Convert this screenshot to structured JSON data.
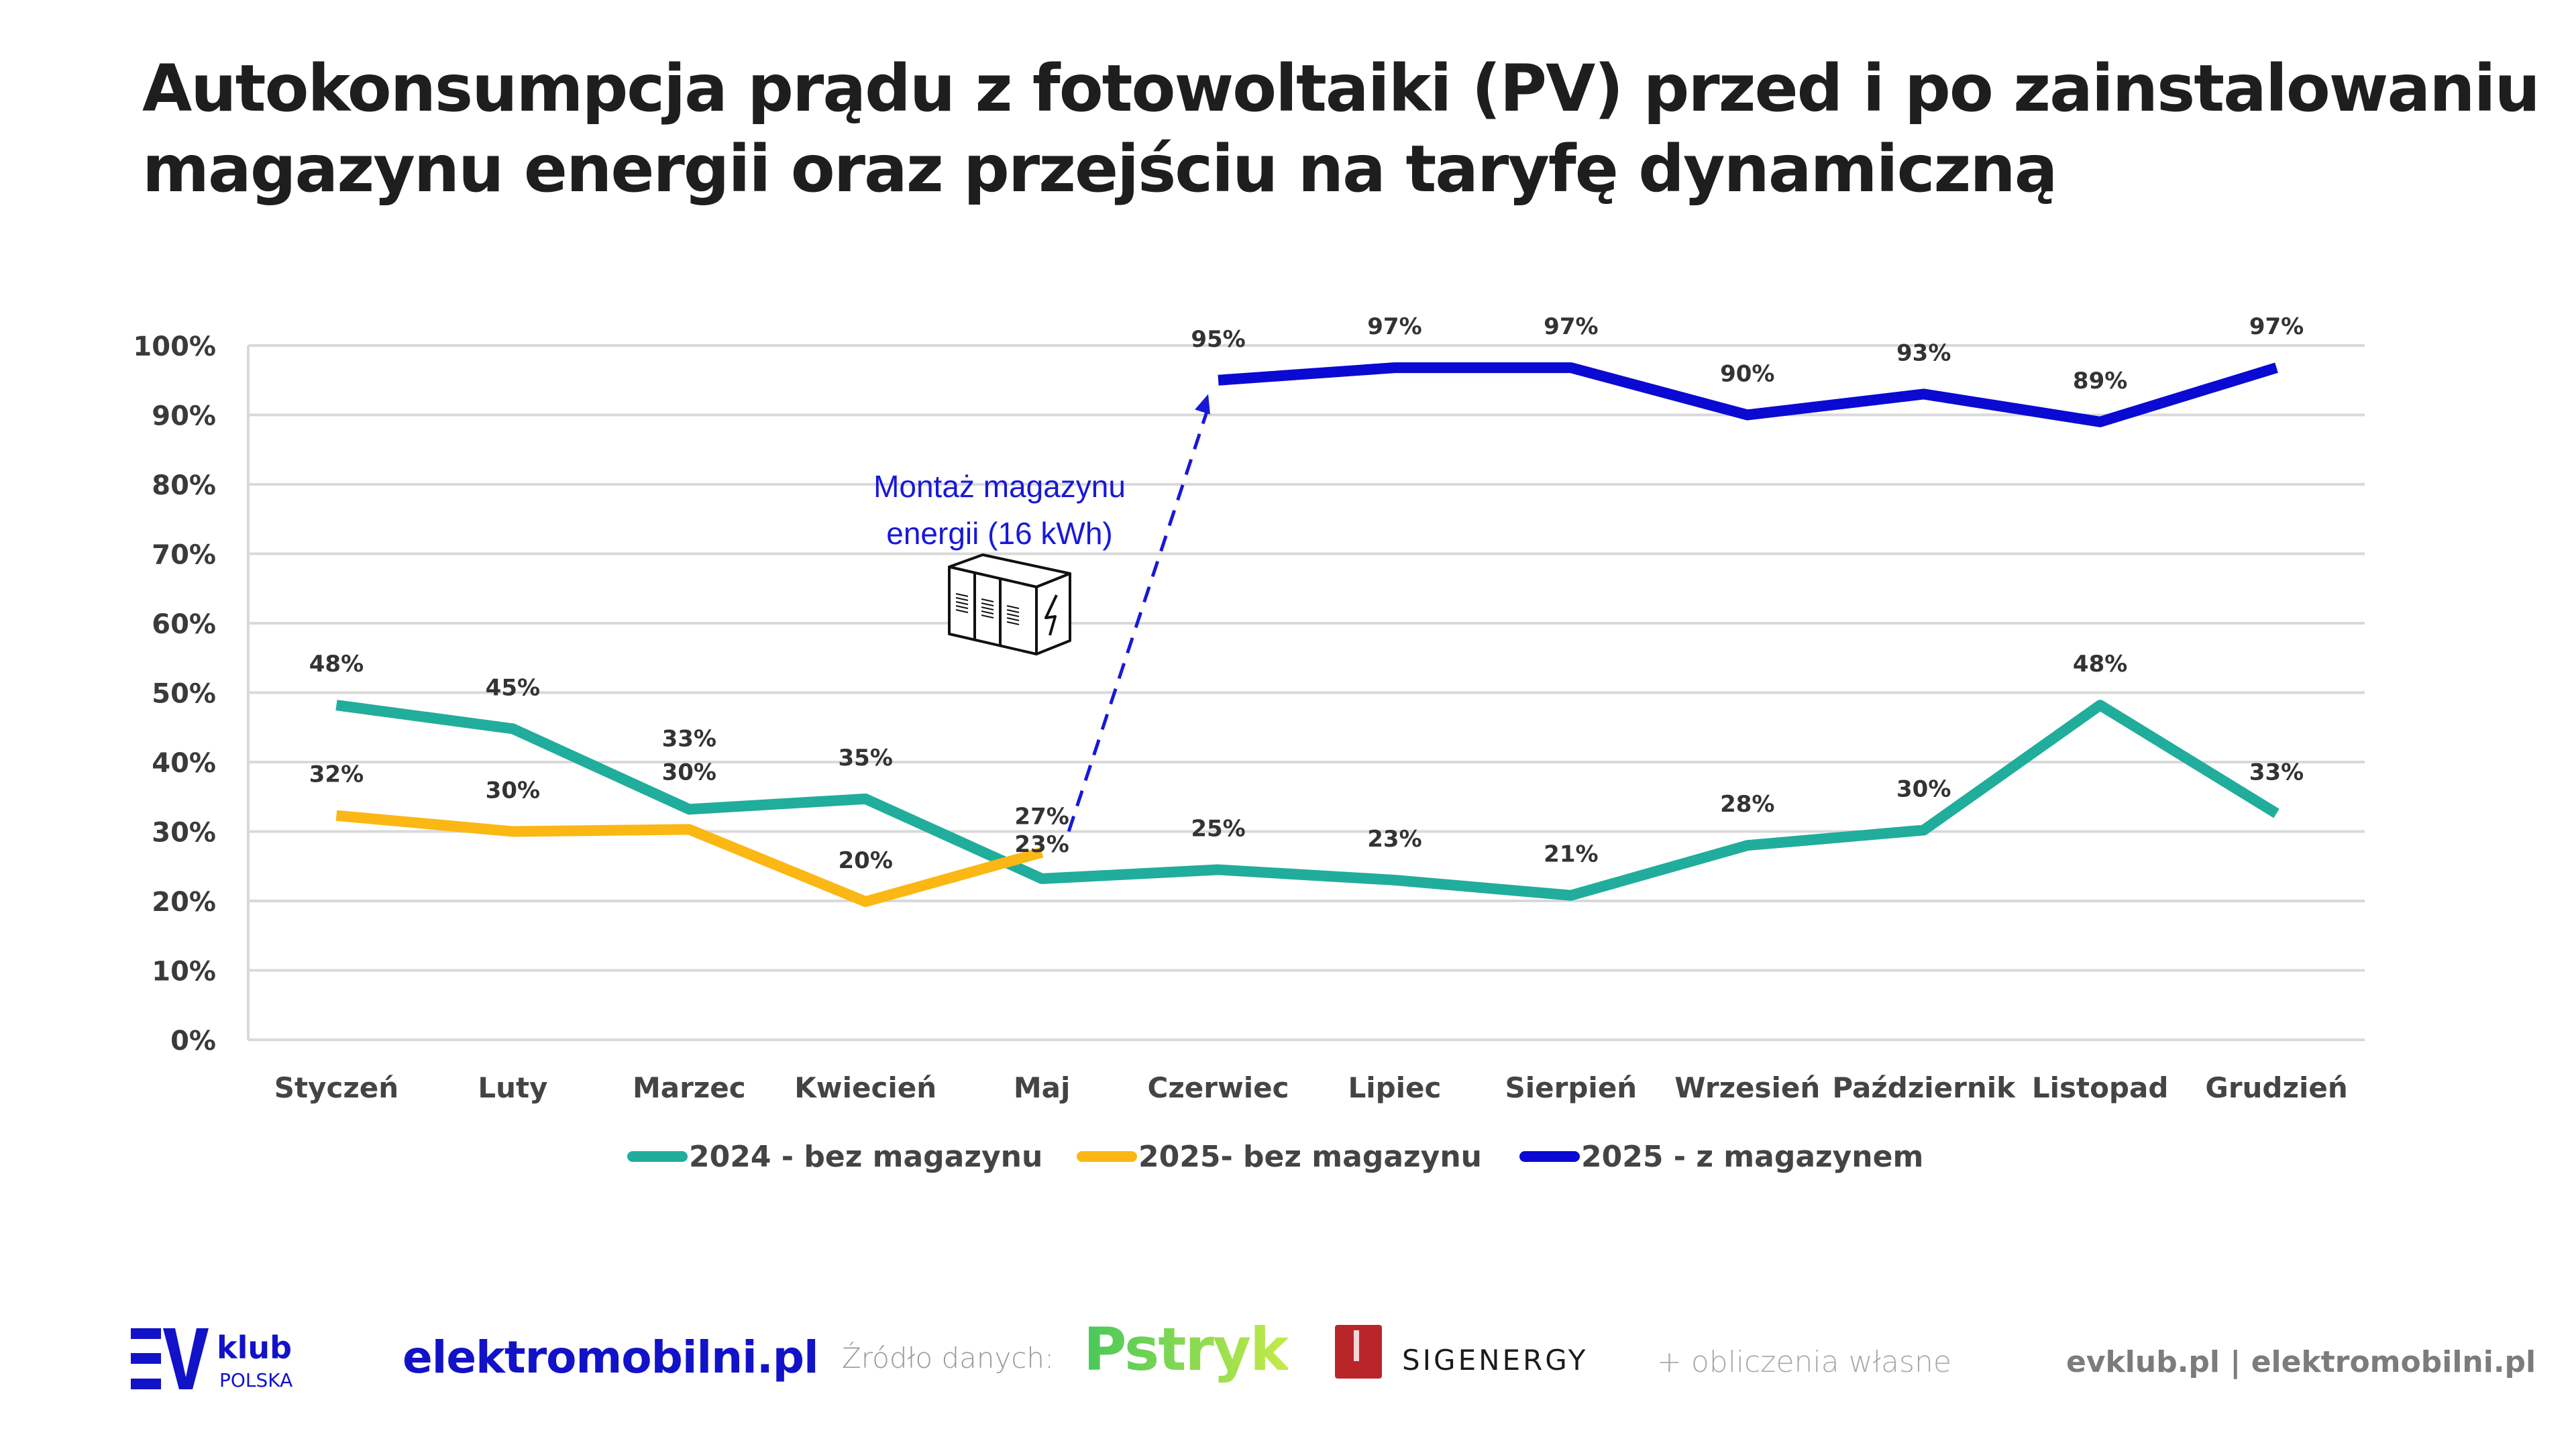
{
  "title": {
    "line1": "Autokonsumpcja prądu z fotowoltaiki (PV) przed i po zainstalowaniu",
    "line2": "magazynu energii oraz przejściu na taryfę dynamiczną"
  },
  "annotation": {
    "line1": "Montaż magazynu",
    "line2": "energii (16 kWh)",
    "icon": "battery-storage-container-icon",
    "arrow_from_month": "Maj",
    "arrow_to_month": "Czerwiec",
    "color": "#1818d8"
  },
  "chart_data": {
    "type": "line",
    "title": "Autokonsumpcja prądu z fotowoltaiki (PV) przed i po zainstalowaniu magazynu energii oraz przejściu na taryfę dynamiczną",
    "xlabel": "",
    "ylabel": "",
    "ylim": [
      0,
      100
    ],
    "yticks": [
      "0%",
      "10%",
      "20%",
      "30%",
      "40%",
      "50%",
      "60%",
      "70%",
      "80%",
      "90%",
      "100%"
    ],
    "grid": true,
    "legend_position": "bottom",
    "categories": [
      "Styczeń",
      "Luty",
      "Marzec",
      "Kwiecień",
      "Maj",
      "Czerwiec",
      "Lipiec",
      "Sierpień",
      "Wrzesień",
      "Październik",
      "Listopad",
      "Grudzień"
    ],
    "series": [
      {
        "name": "2024 - bez magazynu",
        "color": "#20ad9c",
        "values": [
          48,
          45,
          33,
          35,
          23,
          25,
          23,
          21,
          28,
          30,
          48,
          33
        ],
        "plot_values": [
          48.2,
          44.8,
          33.2,
          34.7,
          23.2,
          24.5,
          23.0,
          20.8,
          28.0,
          30.2,
          48.2,
          32.6
        ],
        "labels": [
          "48%",
          "45%",
          "33%",
          "35%",
          "23%",
          "25%",
          "23%",
          "21%",
          "28%",
          "30%",
          "48%",
          "33%"
        ]
      },
      {
        "name": "2025- bez magazynu",
        "color": "#fbb714",
        "values": [
          32,
          30,
          30,
          20,
          27,
          null,
          null,
          null,
          null,
          null,
          null,
          null
        ],
        "plot_values": [
          32.3,
          30.0,
          30.3,
          19.9,
          27.0,
          null,
          null,
          null,
          null,
          null,
          null,
          null
        ],
        "labels": [
          "32%",
          "30%",
          "30%",
          "20%",
          "27%",
          null,
          null,
          null,
          null,
          null,
          null,
          null
        ]
      },
      {
        "name": "2025 - z magazynem",
        "color": "#0a0ad2",
        "values": [
          null,
          null,
          null,
          null,
          null,
          95,
          97,
          97,
          90,
          93,
          89,
          97
        ],
        "plot_values": [
          null,
          null,
          null,
          null,
          null,
          95.0,
          96.8,
          96.8,
          90.0,
          93.0,
          89.0,
          96.8
        ],
        "labels": [
          null,
          null,
          null,
          null,
          null,
          "95%",
          "97%",
          "97%",
          "90%",
          "93%",
          "89%",
          "97%"
        ]
      }
    ]
  },
  "footer": {
    "ev_logo_main": "EV",
    "ev_logo_klub": "klub",
    "ev_logo_polska": "POLSKA",
    "elektromobilni": "elektromobilni.pl",
    "source_label": "Źródło danych:",
    "pstryk": "Pstryk",
    "sigenergy": "SIGENERGY",
    "own_calc": "+ obliczenia własne",
    "sites": "evklub.pl | elektromobilni.pl"
  }
}
